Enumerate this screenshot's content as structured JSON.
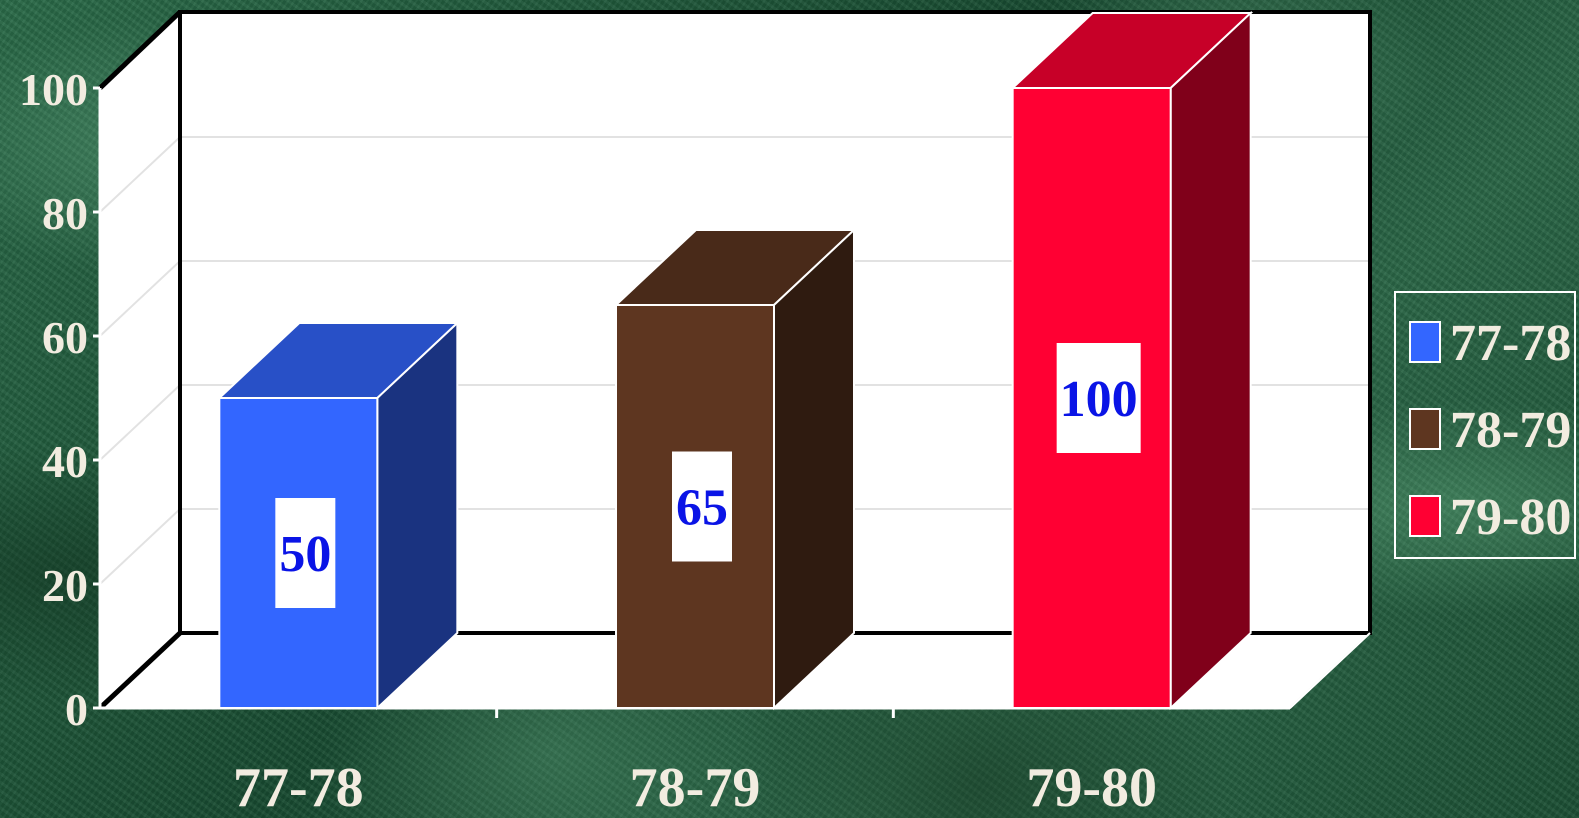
{
  "chart_data": {
    "type": "bar",
    "three_d": true,
    "categories": [
      "77-78",
      "78-79",
      "79-80"
    ],
    "values": [
      50,
      65,
      100
    ],
    "data_labels": [
      "50",
      "65",
      "100"
    ],
    "colors": [
      "#3366ff",
      "#5e3620",
      "#ff0033"
    ],
    "y_ticks": [
      "0",
      "20",
      "40",
      "60",
      "80",
      "100"
    ],
    "ylim": [
      0,
      100
    ],
    "grid": true,
    "legend_position": "right",
    "legend": [
      {
        "label": "77-78",
        "color": "#3366ff"
      },
      {
        "label": "78-79",
        "color": "#5e3620"
      },
      {
        "label": "79-80",
        "color": "#ff0033"
      }
    ]
  }
}
